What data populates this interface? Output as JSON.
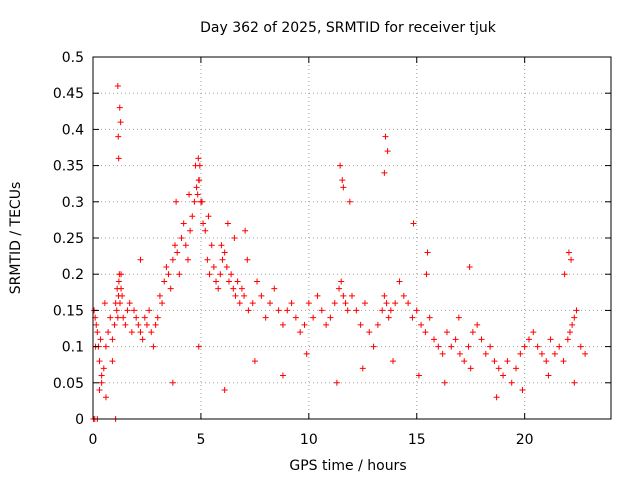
{
  "chart_data": {
    "type": "scatter",
    "title": "Day 362 of 2025, SRMTID for receiver tjuk",
    "xlabel": "GPS time / hours",
    "ylabel": "SRMTID / TECUs",
    "xlim": [
      0,
      24
    ],
    "ylim": [
      0,
      0.5
    ],
    "xticks": [
      0,
      5,
      10,
      15,
      20
    ],
    "xtick_labels": [
      "0",
      "5",
      "10",
      "15",
      "20"
    ],
    "yticks": [
      0,
      0.05,
      0.1,
      0.15,
      0.2,
      0.25,
      0.3,
      0.35,
      0.4,
      0.45,
      0.5
    ],
    "ytick_labels": [
      "0",
      "0.05",
      "0.1",
      "0.15",
      "0.2",
      "0.25",
      "0.3",
      "0.35",
      "0.4",
      "0.45",
      "0.5"
    ],
    "grid": true,
    "marker": "+",
    "marker_color": "#ff0000",
    "series": [
      {
        "name": "SRMTID",
        "x": [
          0.05,
          0.1,
          0.15,
          0.2,
          0.25,
          0.3,
          0.35,
          0.4,
          0.5,
          0.6,
          0.7,
          0.8,
          0.9,
          1.0,
          1.05,
          1.1,
          1.12,
          1.15,
          1.18,
          1.2,
          1.22,
          1.25,
          1.3,
          1.35,
          1.4,
          1.5,
          1.6,
          1.7,
          1.8,
          1.9,
          2.0,
          2.1,
          2.2,
          2.3,
          2.4,
          2.5,
          2.6,
          2.7,
          2.8,
          2.9,
          3.0,
          3.1,
          3.2,
          3.3,
          3.4,
          3.5,
          3.6,
          3.7,
          3.8,
          3.9,
          4.0,
          4.1,
          4.2,
          4.3,
          4.4,
          4.5,
          4.6,
          4.7,
          4.8,
          4.85,
          4.9,
          4.95,
          5.0,
          5.1,
          5.2,
          5.3,
          5.4,
          5.5,
          5.6,
          5.7,
          5.8,
          5.9,
          6.0,
          6.1,
          6.2,
          6.3,
          6.4,
          6.5,
          6.6,
          6.7,
          6.8,
          6.9,
          7.0,
          7.2,
          7.4,
          7.6,
          7.8,
          8.0,
          8.2,
          8.4,
          8.6,
          8.8,
          9.0,
          9.2,
          9.4,
          9.6,
          9.8,
          10.0,
          10.2,
          10.4,
          10.6,
          10.8,
          11.0,
          11.2,
          11.4,
          11.5,
          11.6,
          11.7,
          11.8,
          12.0,
          12.2,
          12.4,
          12.6,
          12.8,
          13.0,
          13.2,
          13.4,
          13.5,
          13.6,
          13.7,
          13.8,
          14.0,
          14.2,
          14.4,
          14.6,
          14.8,
          15.0,
          15.2,
          15.4,
          15.6,
          15.8,
          16.0,
          16.2,
          16.4,
          16.6,
          16.8,
          17.0,
          17.2,
          17.4,
          17.6,
          17.8,
          18.0,
          18.2,
          18.4,
          18.6,
          18.8,
          19.0,
          19.2,
          19.4,
          19.6,
          19.8,
          20.0,
          20.2,
          20.4,
          20.6,
          20.8,
          21.0,
          21.2,
          21.4,
          21.6,
          21.8,
          22.0,
          22.1,
          22.2,
          22.3,
          22.4,
          22.6,
          22.8,
          0.02,
          0.08,
          0.2,
          1.05,
          0.4,
          0.3,
          0.6,
          0.9,
          1.3,
          2.2,
          3.7,
          4.9,
          6.1,
          7.5,
          8.8,
          9.9,
          11.3,
          12.5,
          13.9,
          15.1,
          16.3,
          17.5,
          18.7,
          19.9,
          21.1,
          22.3,
          0.12,
          0.55,
          1.15,
          1.24,
          1.28,
          1.17,
          1.19,
          13.55,
          13.65,
          13.5,
          11.55,
          11.45,
          11.6,
          11.9,
          14.85,
          15.45,
          15.5,
          16.95,
          17.45,
          21.85,
          22.05,
          22.15,
          3.85,
          4.45,
          4.75,
          4.88,
          4.92,
          5.05,
          5.35,
          6.25,
          6.55,
          7.05,
          7.15,
          5.95
        ],
        "y": [
          0.15,
          0.14,
          0.13,
          0.12,
          0.1,
          0.08,
          0.11,
          0.06,
          0.07,
          0.1,
          0.12,
          0.14,
          0.11,
          0.13,
          0.16,
          0.15,
          0.18,
          0.14,
          0.17,
          0.19,
          0.2,
          0.16,
          0.18,
          0.17,
          0.14,
          0.13,
          0.15,
          0.16,
          0.12,
          0.15,
          0.14,
          0.13,
          0.12,
          0.11,
          0.14,
          0.13,
          0.15,
          0.12,
          0.1,
          0.13,
          0.14,
          0.17,
          0.16,
          0.19,
          0.21,
          0.2,
          0.18,
          0.22,
          0.24,
          0.23,
          0.2,
          0.25,
          0.27,
          0.24,
          0.22,
          0.26,
          0.28,
          0.3,
          0.32,
          0.31,
          0.33,
          0.35,
          0.3,
          0.27,
          0.26,
          0.22,
          0.2,
          0.24,
          0.21,
          0.19,
          0.18,
          0.2,
          0.22,
          0.23,
          0.21,
          0.19,
          0.2,
          0.18,
          0.17,
          0.19,
          0.16,
          0.18,
          0.17,
          0.15,
          0.16,
          0.19,
          0.17,
          0.14,
          0.16,
          0.18,
          0.15,
          0.13,
          0.15,
          0.16,
          0.14,
          0.12,
          0.13,
          0.16,
          0.14,
          0.17,
          0.15,
          0.13,
          0.14,
          0.16,
          0.18,
          0.19,
          0.17,
          0.16,
          0.15,
          0.17,
          0.15,
          0.13,
          0.16,
          0.12,
          0.1,
          0.13,
          0.15,
          0.17,
          0.16,
          0.14,
          0.15,
          0.16,
          0.19,
          0.17,
          0.16,
          0.14,
          0.15,
          0.13,
          0.12,
          0.14,
          0.11,
          0.1,
          0.09,
          0.12,
          0.1,
          0.11,
          0.09,
          0.08,
          0.1,
          0.12,
          0.13,
          0.11,
          0.09,
          0.1,
          0.08,
          0.07,
          0.06,
          0.08,
          0.05,
          0.07,
          0.09,
          0.1,
          0.11,
          0.12,
          0.1,
          0.09,
          0.08,
          0.11,
          0.09,
          0.1,
          0.08,
          0.11,
          0.12,
          0.13,
          0.14,
          0.15,
          0.1,
          0.09,
          0.0,
          0.0,
          0.0,
          0.0,
          0.05,
          0.04,
          0.03,
          0.08,
          0.2,
          0.22,
          0.05,
          0.1,
          0.04,
          0.08,
          0.06,
          0.09,
          0.05,
          0.07,
          0.08,
          0.06,
          0.05,
          0.07,
          0.03,
          0.04,
          0.06,
          0.05,
          0.1,
          0.16,
          0.46,
          0.43,
          0.41,
          0.39,
          0.36,
          0.39,
          0.37,
          0.34,
          0.33,
          0.35,
          0.32,
          0.3,
          0.27,
          0.2,
          0.23,
          0.14,
          0.21,
          0.2,
          0.23,
          0.22,
          0.3,
          0.31,
          0.35,
          0.36,
          0.33,
          0.3,
          0.28,
          0.27,
          0.25,
          0.26,
          0.22,
          0.24
        ]
      }
    ]
  }
}
